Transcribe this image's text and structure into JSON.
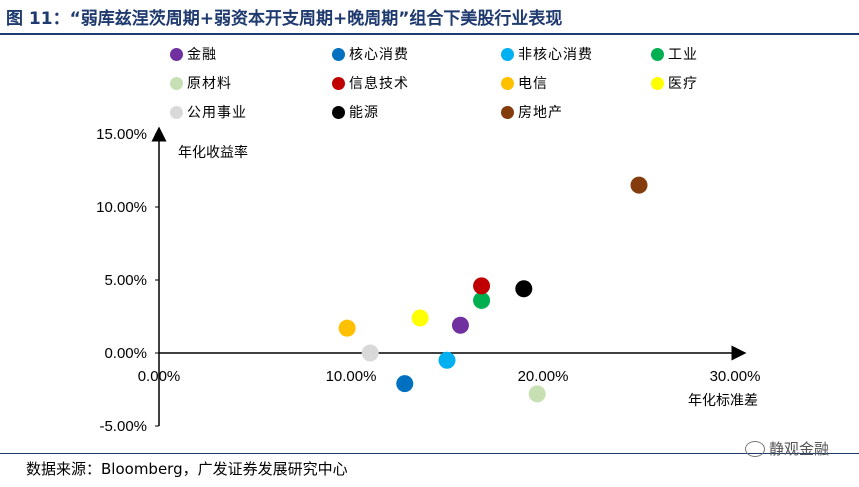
{
  "header": {
    "title": "图 11：“弱库兹涅茨周期+弱资本开支周期+晚周期”组合下美股行业表现"
  },
  "footer": {
    "source": "数据来源：Bloomberg，广发证券发展研究中心",
    "watermark": "静观金融"
  },
  "chart_data": {
    "type": "scatter",
    "title": "",
    "xlabel": "年化标准差",
    "ylabel": "年化收益率",
    "xlim": [
      0,
      0.3
    ],
    "ylim": [
      -0.05,
      0.15
    ],
    "x_ticks": [
      "0.00%",
      "10.00%",
      "20.00%",
      "30.00%"
    ],
    "y_ticks": [
      "15.00%",
      "10.00%",
      "5.00%",
      "0.00%",
      "-5.00%"
    ],
    "grid": false,
    "legend_position": "top",
    "series": [
      {
        "name": "金融",
        "color": "#7030a0",
        "x": 0.157,
        "y": 0.019
      },
      {
        "name": "核心消费",
        "color": "#0070c0",
        "x": 0.128,
        "y": -0.021
      },
      {
        "name": "非核心消费",
        "color": "#00b0f0",
        "x": 0.15,
        "y": -0.005
      },
      {
        "name": "工业",
        "color": "#00b050",
        "x": 0.168,
        "y": 0.036
      },
      {
        "name": "原材料",
        "color": "#c6e0b4",
        "x": 0.197,
        "y": -0.028
      },
      {
        "name": "信息技术",
        "color": "#c00000",
        "x": 0.168,
        "y": 0.046
      },
      {
        "name": "电信",
        "color": "#ffc000",
        "x": 0.098,
        "y": 0.017
      },
      {
        "name": "医疗",
        "color": "#ffff00",
        "x": 0.136,
        "y": 0.024
      },
      {
        "name": "公用事业",
        "color": "#d9d9d9",
        "x": 0.11,
        "y": 0.0
      },
      {
        "name": "能源",
        "color": "#000000",
        "x": 0.19,
        "y": 0.044
      },
      {
        "name": "房地产",
        "color": "#843c0c",
        "x": 0.25,
        "y": 0.115
      }
    ]
  }
}
